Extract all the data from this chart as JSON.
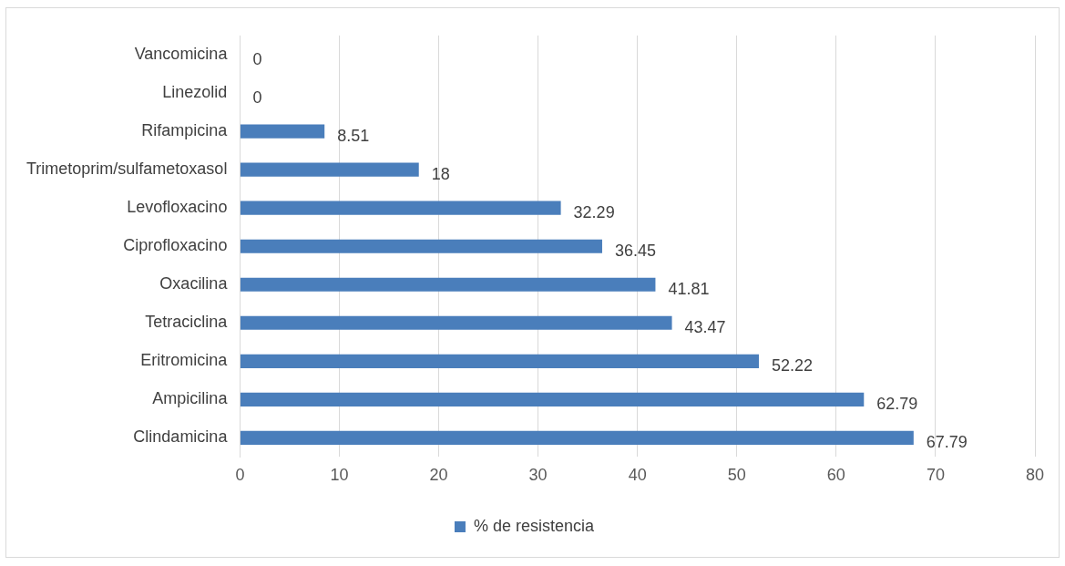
{
  "chart_data": {
    "type": "bar",
    "orientation": "horizontal",
    "categories": [
      "Vancomicina",
      "Linezolid",
      "Rifampicina",
      "Trimetoprim/sulfametoxasol",
      "Levofloxacino",
      "Ciprofloxacino",
      "Oxacilina",
      "Tetraciclina",
      "Eritromicina",
      "Ampicilina",
      "Clindamicina"
    ],
    "series": [
      {
        "name": "% de resistencia",
        "color": "#4a7ebb",
        "values": [
          0,
          0,
          8.51,
          18,
          32.29,
          36.45,
          41.81,
          43.47,
          52.22,
          62.79,
          67.79
        ]
      }
    ],
    "xlim": [
      0,
      80
    ],
    "xticks": [
      0,
      10,
      20,
      30,
      40,
      50,
      60,
      70,
      80
    ],
    "grid": "x",
    "legend": "bottom",
    "data_labels": true
  }
}
